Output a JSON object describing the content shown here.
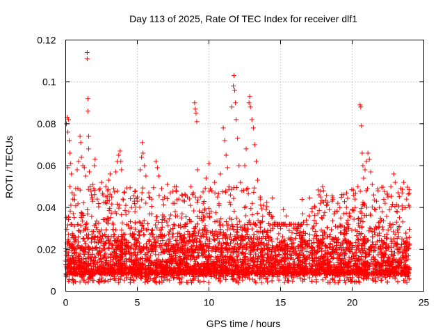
{
  "chart_data": {
    "type": "scatter",
    "title": "Day 113 of 2025, Rate Of TEC Index for receiver dlf1",
    "xlabel": "GPS time / hours",
    "ylabel": "ROTI / TECUs",
    "xlim": [
      0,
      25
    ],
    "ylim": [
      0,
      0.12
    ],
    "x_ticks": [
      "0",
      "5",
      "10",
      "15",
      "20",
      "25"
    ],
    "y_ticks": [
      "0",
      "0.02",
      "0.04",
      "0.06",
      "0.08",
      "0.1",
      "0.12"
    ],
    "grid": true,
    "marker": "plus",
    "color": "#ff0000",
    "series": [
      {
        "points": [
          [
            0.05,
            0.08
          ],
          [
            0.1,
            0.083
          ],
          [
            0.15,
            0.076
          ],
          [
            0.2,
            0.082
          ],
          [
            0.25,
            0.072
          ],
          [
            0.3,
            0.066
          ],
          [
            0.35,
            0.061
          ],
          [
            0.4,
            0.056
          ],
          [
            0.15,
            0.059
          ],
          [
            0.3,
            0.05
          ],
          [
            0.45,
            0.047
          ],
          [
            0.5,
            0.044
          ],
          [
            0.6,
            0.046
          ],
          [
            0.7,
            0.049
          ],
          [
            0.8,
            0.058
          ],
          [
            0.9,
            0.062
          ],
          [
            1.0,
            0.074
          ],
          [
            1.05,
            0.071
          ],
          [
            1.1,
            0.064
          ],
          [
            1.2,
            0.06
          ],
          [
            1.3,
            0.059
          ],
          [
            1.4,
            0.055
          ],
          [
            1.5,
            0.114
          ],
          [
            1.5,
            0.111
          ],
          [
            1.55,
            0.092
          ],
          [
            1.55,
            0.086
          ],
          [
            1.6,
            0.074
          ],
          [
            1.6,
            0.068
          ],
          [
            1.65,
            0.057
          ],
          [
            1.7,
            0.05
          ],
          [
            1.8,
            0.046
          ],
          [
            1.9,
            0.051
          ],
          [
            2.0,
            0.06
          ],
          [
            2.05,
            0.063
          ],
          [
            2.2,
            0.044
          ],
          [
            2.4,
            0.049
          ],
          [
            2.5,
            0.052
          ],
          [
            2.6,
            0.046
          ],
          [
            2.8,
            0.05
          ],
          [
            3.0,
            0.053
          ],
          [
            3.1,
            0.056
          ],
          [
            3.2,
            0.045
          ],
          [
            3.35,
            0.049
          ],
          [
            3.5,
            0.057
          ],
          [
            3.6,
            0.062
          ],
          [
            3.7,
            0.065
          ],
          [
            3.8,
            0.067
          ],
          [
            3.85,
            0.062
          ],
          [
            3.9,
            0.058
          ],
          [
            4.0,
            0.044
          ],
          [
            4.2,
            0.041
          ],
          [
            4.4,
            0.038
          ],
          [
            4.6,
            0.04
          ],
          [
            4.8,
            0.043
          ],
          [
            5.0,
            0.045
          ],
          [
            5.2,
            0.058
          ],
          [
            5.3,
            0.064
          ],
          [
            5.35,
            0.071
          ],
          [
            5.4,
            0.066
          ],
          [
            5.5,
            0.06
          ],
          [
            5.6,
            0.055
          ],
          [
            5.8,
            0.047
          ],
          [
            6.0,
            0.044
          ],
          [
            6.3,
            0.062
          ],
          [
            6.4,
            0.059
          ],
          [
            6.5,
            0.055
          ],
          [
            6.7,
            0.049
          ],
          [
            6.9,
            0.045
          ],
          [
            7.1,
            0.051
          ],
          [
            7.3,
            0.047
          ],
          [
            7.5,
            0.042
          ],
          [
            7.7,
            0.048
          ],
          [
            7.9,
            0.044
          ],
          [
            8.1,
            0.046
          ],
          [
            8.3,
            0.043
          ],
          [
            8.5,
            0.045
          ],
          [
            8.7,
            0.041
          ],
          [
            8.9,
            0.047
          ],
          [
            9.0,
            0.09
          ],
          [
            9.05,
            0.087
          ],
          [
            9.1,
            0.085
          ],
          [
            9.15,
            0.081
          ],
          [
            9.2,
            0.058
          ],
          [
            9.4,
            0.045
          ],
          [
            9.6,
            0.042
          ],
          [
            9.8,
            0.054
          ],
          [
            10.0,
            0.061
          ],
          [
            10.2,
            0.048
          ],
          [
            10.4,
            0.052
          ],
          [
            10.6,
            0.045
          ],
          [
            10.8,
            0.056
          ],
          [
            11.0,
            0.078
          ],
          [
            11.1,
            0.072
          ],
          [
            11.2,
            0.065
          ],
          [
            11.3,
            0.059
          ],
          [
            11.4,
            0.05
          ],
          [
            11.5,
            0.046
          ],
          [
            11.6,
            0.088
          ],
          [
            11.7,
            0.098
          ],
          [
            11.75,
            0.103
          ],
          [
            11.8,
            0.096
          ],
          [
            11.85,
            0.09
          ],
          [
            11.9,
            0.082
          ],
          [
            12.0,
            0.073
          ],
          [
            12.1,
            0.06
          ],
          [
            12.2,
            0.052
          ],
          [
            12.3,
            0.048
          ],
          [
            12.5,
            0.06
          ],
          [
            12.6,
            0.068
          ],
          [
            12.8,
            0.09
          ],
          [
            12.85,
            0.093
          ],
          [
            12.9,
            0.088
          ],
          [
            13.0,
            0.082
          ],
          [
            13.1,
            0.078
          ],
          [
            13.2,
            0.07
          ],
          [
            13.3,
            0.062
          ],
          [
            13.4,
            0.053
          ],
          [
            13.6,
            0.044
          ],
          [
            13.8,
            0.041
          ],
          [
            14.0,
            0.039
          ],
          [
            14.2,
            0.037
          ],
          [
            14.4,
            0.035
          ],
          [
            14.6,
            0.033
          ],
          [
            14.8,
            0.031
          ],
          [
            15.0,
            0.03
          ],
          [
            15.2,
            0.039
          ],
          [
            15.4,
            0.036
          ],
          [
            15.6,
            0.029
          ],
          [
            15.8,
            0.028
          ],
          [
            16.0,
            0.03
          ],
          [
            16.2,
            0.032
          ],
          [
            16.4,
            0.031
          ],
          [
            16.6,
            0.033
          ],
          [
            16.8,
            0.034
          ],
          [
            17.0,
            0.036
          ],
          [
            17.2,
            0.038
          ],
          [
            17.4,
            0.04
          ],
          [
            17.6,
            0.037
          ],
          [
            17.8,
            0.045
          ],
          [
            18.0,
            0.048
          ],
          [
            18.2,
            0.041
          ],
          [
            18.4,
            0.039
          ],
          [
            18.6,
            0.043
          ],
          [
            18.8,
            0.038
          ],
          [
            19.0,
            0.042
          ],
          [
            19.2,
            0.035
          ],
          [
            19.4,
            0.037
          ],
          [
            19.6,
            0.04
          ],
          [
            19.8,
            0.036
          ],
          [
            20.0,
            0.039
          ],
          [
            20.2,
            0.044
          ],
          [
            20.4,
            0.05
          ],
          [
            20.55,
            0.089
          ],
          [
            20.6,
            0.088
          ],
          [
            20.65,
            0.079
          ],
          [
            20.7,
            0.066
          ],
          [
            20.75,
            0.06
          ],
          [
            20.8,
            0.054
          ],
          [
            20.9,
            0.058
          ],
          [
            21.0,
            0.062
          ],
          [
            21.1,
            0.066
          ],
          [
            21.2,
            0.063
          ],
          [
            21.3,
            0.057
          ],
          [
            21.4,
            0.051
          ],
          [
            21.5,
            0.046
          ],
          [
            21.7,
            0.043
          ],
          [
            21.9,
            0.04
          ],
          [
            22.1,
            0.038
          ],
          [
            22.3,
            0.042
          ],
          [
            22.5,
            0.045
          ],
          [
            22.7,
            0.05
          ],
          [
            22.9,
            0.056
          ],
          [
            23.0,
            0.052
          ],
          [
            23.2,
            0.047
          ],
          [
            23.4,
            0.049
          ],
          [
            23.6,
            0.052
          ],
          [
            23.8,
            0.044
          ],
          [
            23.95,
            0.041
          ]
        ]
      }
    ],
    "dense_band": {
      "x_range": [
        0,
        24
      ],
      "description_values": {
        "low": 0.004,
        "high": 0.035
      }
    }
  }
}
